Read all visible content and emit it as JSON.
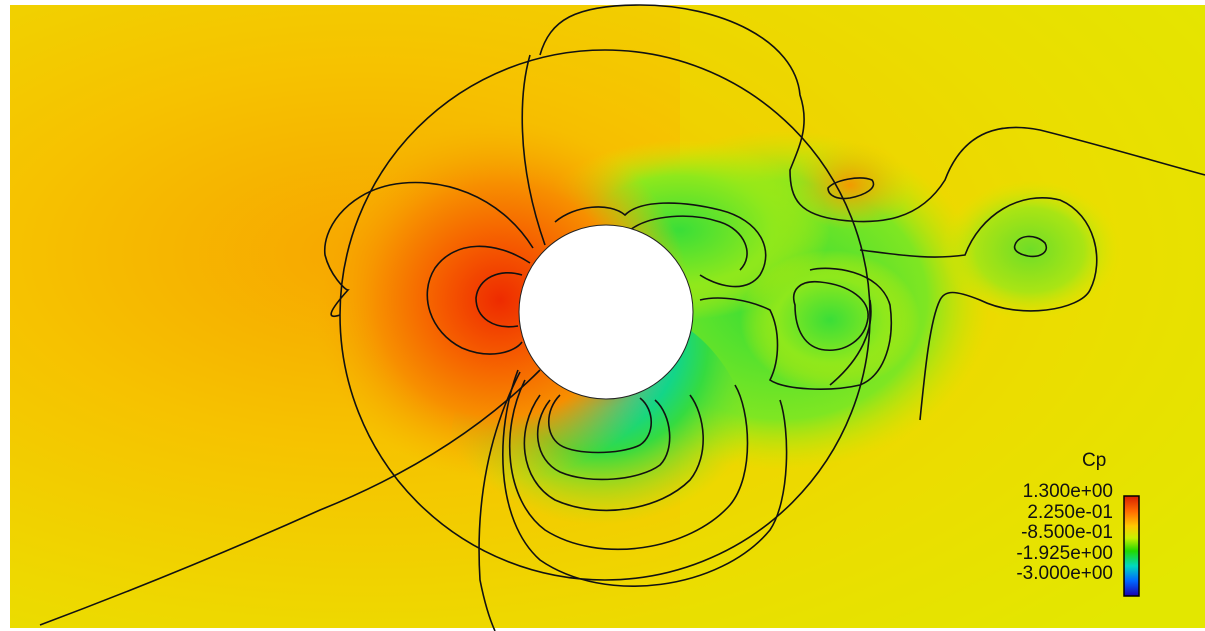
{
  "chart_data": {
    "type": "contour",
    "variable": "Cp",
    "legend": {
      "title": "Cp",
      "ticks": [
        "1.300e+00",
        "2.250e-01",
        "-8.500e-01",
        "-1.925e+00",
        "-3.000e+00"
      ],
      "range": [
        -3.0,
        1.3
      ],
      "colors": [
        "#d91f00",
        "#ff7a00",
        "#ffd800",
        "#c8f000",
        "#22d800",
        "#00d8c0",
        "#0055ff",
        "#1a00b0"
      ],
      "placement": "bottom-right"
    },
    "background_color": "#f3c300",
    "body": "circular cylinder",
    "stagnation_max_cp": 1.3,
    "min_cp": -3.0
  }
}
